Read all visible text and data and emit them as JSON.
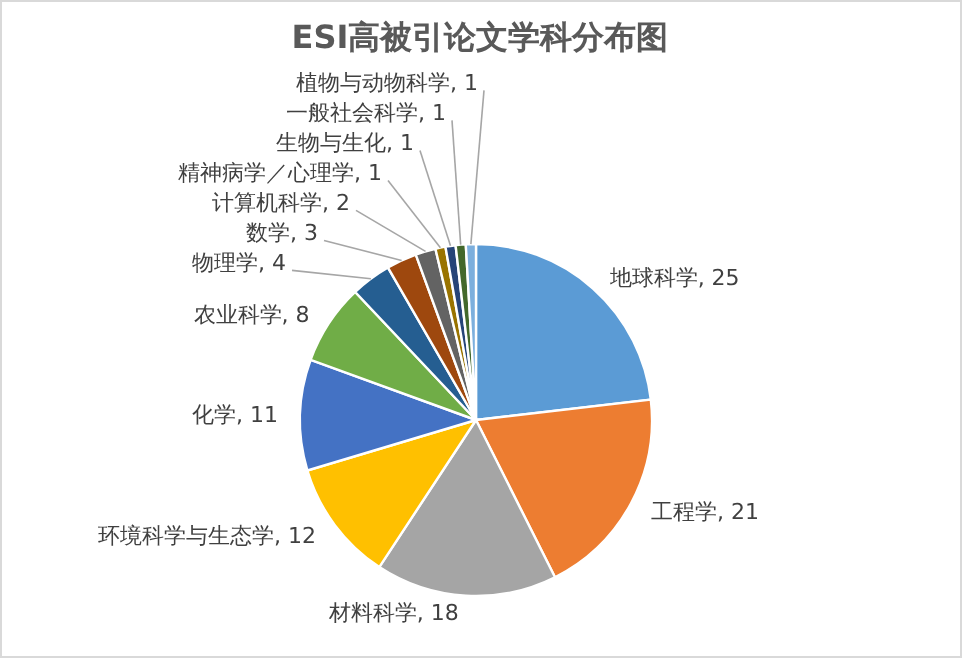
{
  "chart_data": {
    "type": "pie",
    "title": "ESI高被引论文学科分布图",
    "categories": [
      "地球科学",
      "工程学",
      "材料科学",
      "环境科学与生态学",
      "化学",
      "农业科学",
      "物理学",
      "数学",
      "计算机科学",
      "精神病学／心理学",
      "生物与生化",
      "一般社会科学",
      "植物与动物科学"
    ],
    "values": [
      25,
      21,
      18,
      12,
      11,
      8,
      4,
      3,
      2,
      1,
      1,
      1,
      1
    ],
    "value_labels": [
      ", 25",
      ", 21",
      ", 18",
      ", 12",
      ", 11",
      ", 8",
      ", 4",
      ", 3",
      ", 2",
      ", 1",
      ", 1",
      ", 1",
      ", 1"
    ],
    "colors": [
      "#5b9bd5",
      "#ed7d31",
      "#a5a5a5",
      "#ffc000",
      "#4472c4",
      "#70ad47",
      "#255e91",
      "#9e480e",
      "#636363",
      "#997300",
      "#264478",
      "#43682b",
      "#7cafdd"
    ]
  }
}
